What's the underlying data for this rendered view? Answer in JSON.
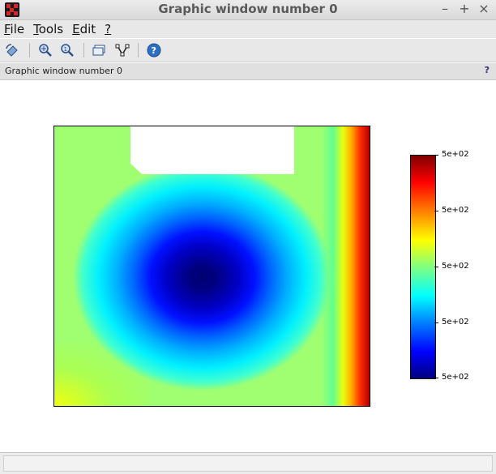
{
  "window": {
    "title": "Graphic window number 0",
    "controls": [
      "–",
      "+",
      "×"
    ]
  },
  "menu": {
    "items": [
      {
        "label": "File",
        "accel": "F",
        "rest": "ile"
      },
      {
        "label": "Tools",
        "accel": "T",
        "rest": "ools"
      },
      {
        "label": "Edit",
        "accel": "E",
        "rest": "dit"
      },
      {
        "label": "?",
        "accel": "?",
        "rest": ""
      }
    ]
  },
  "toolbar": {
    "buttons": [
      "rotate-icon",
      "zoom-in-icon",
      "zoom-reset-icon",
      "datatip-icon",
      "edit-curve-icon",
      "help-icon"
    ]
  },
  "subtitle": {
    "text": "Graphic window number 0",
    "help": "?"
  },
  "colorbar": {
    "labels": [
      "5e+02",
      "5e+02",
      "5e+02",
      "5e+02",
      "5e+02"
    ],
    "colormap": [
      "#00007f",
      "#0000ff",
      "#0080ff",
      "#00ffff",
      "#80ff80",
      "#ffff00",
      "#ff8000",
      "#ff0000",
      "#800000"
    ]
  },
  "status": {
    "text": ""
  }
}
